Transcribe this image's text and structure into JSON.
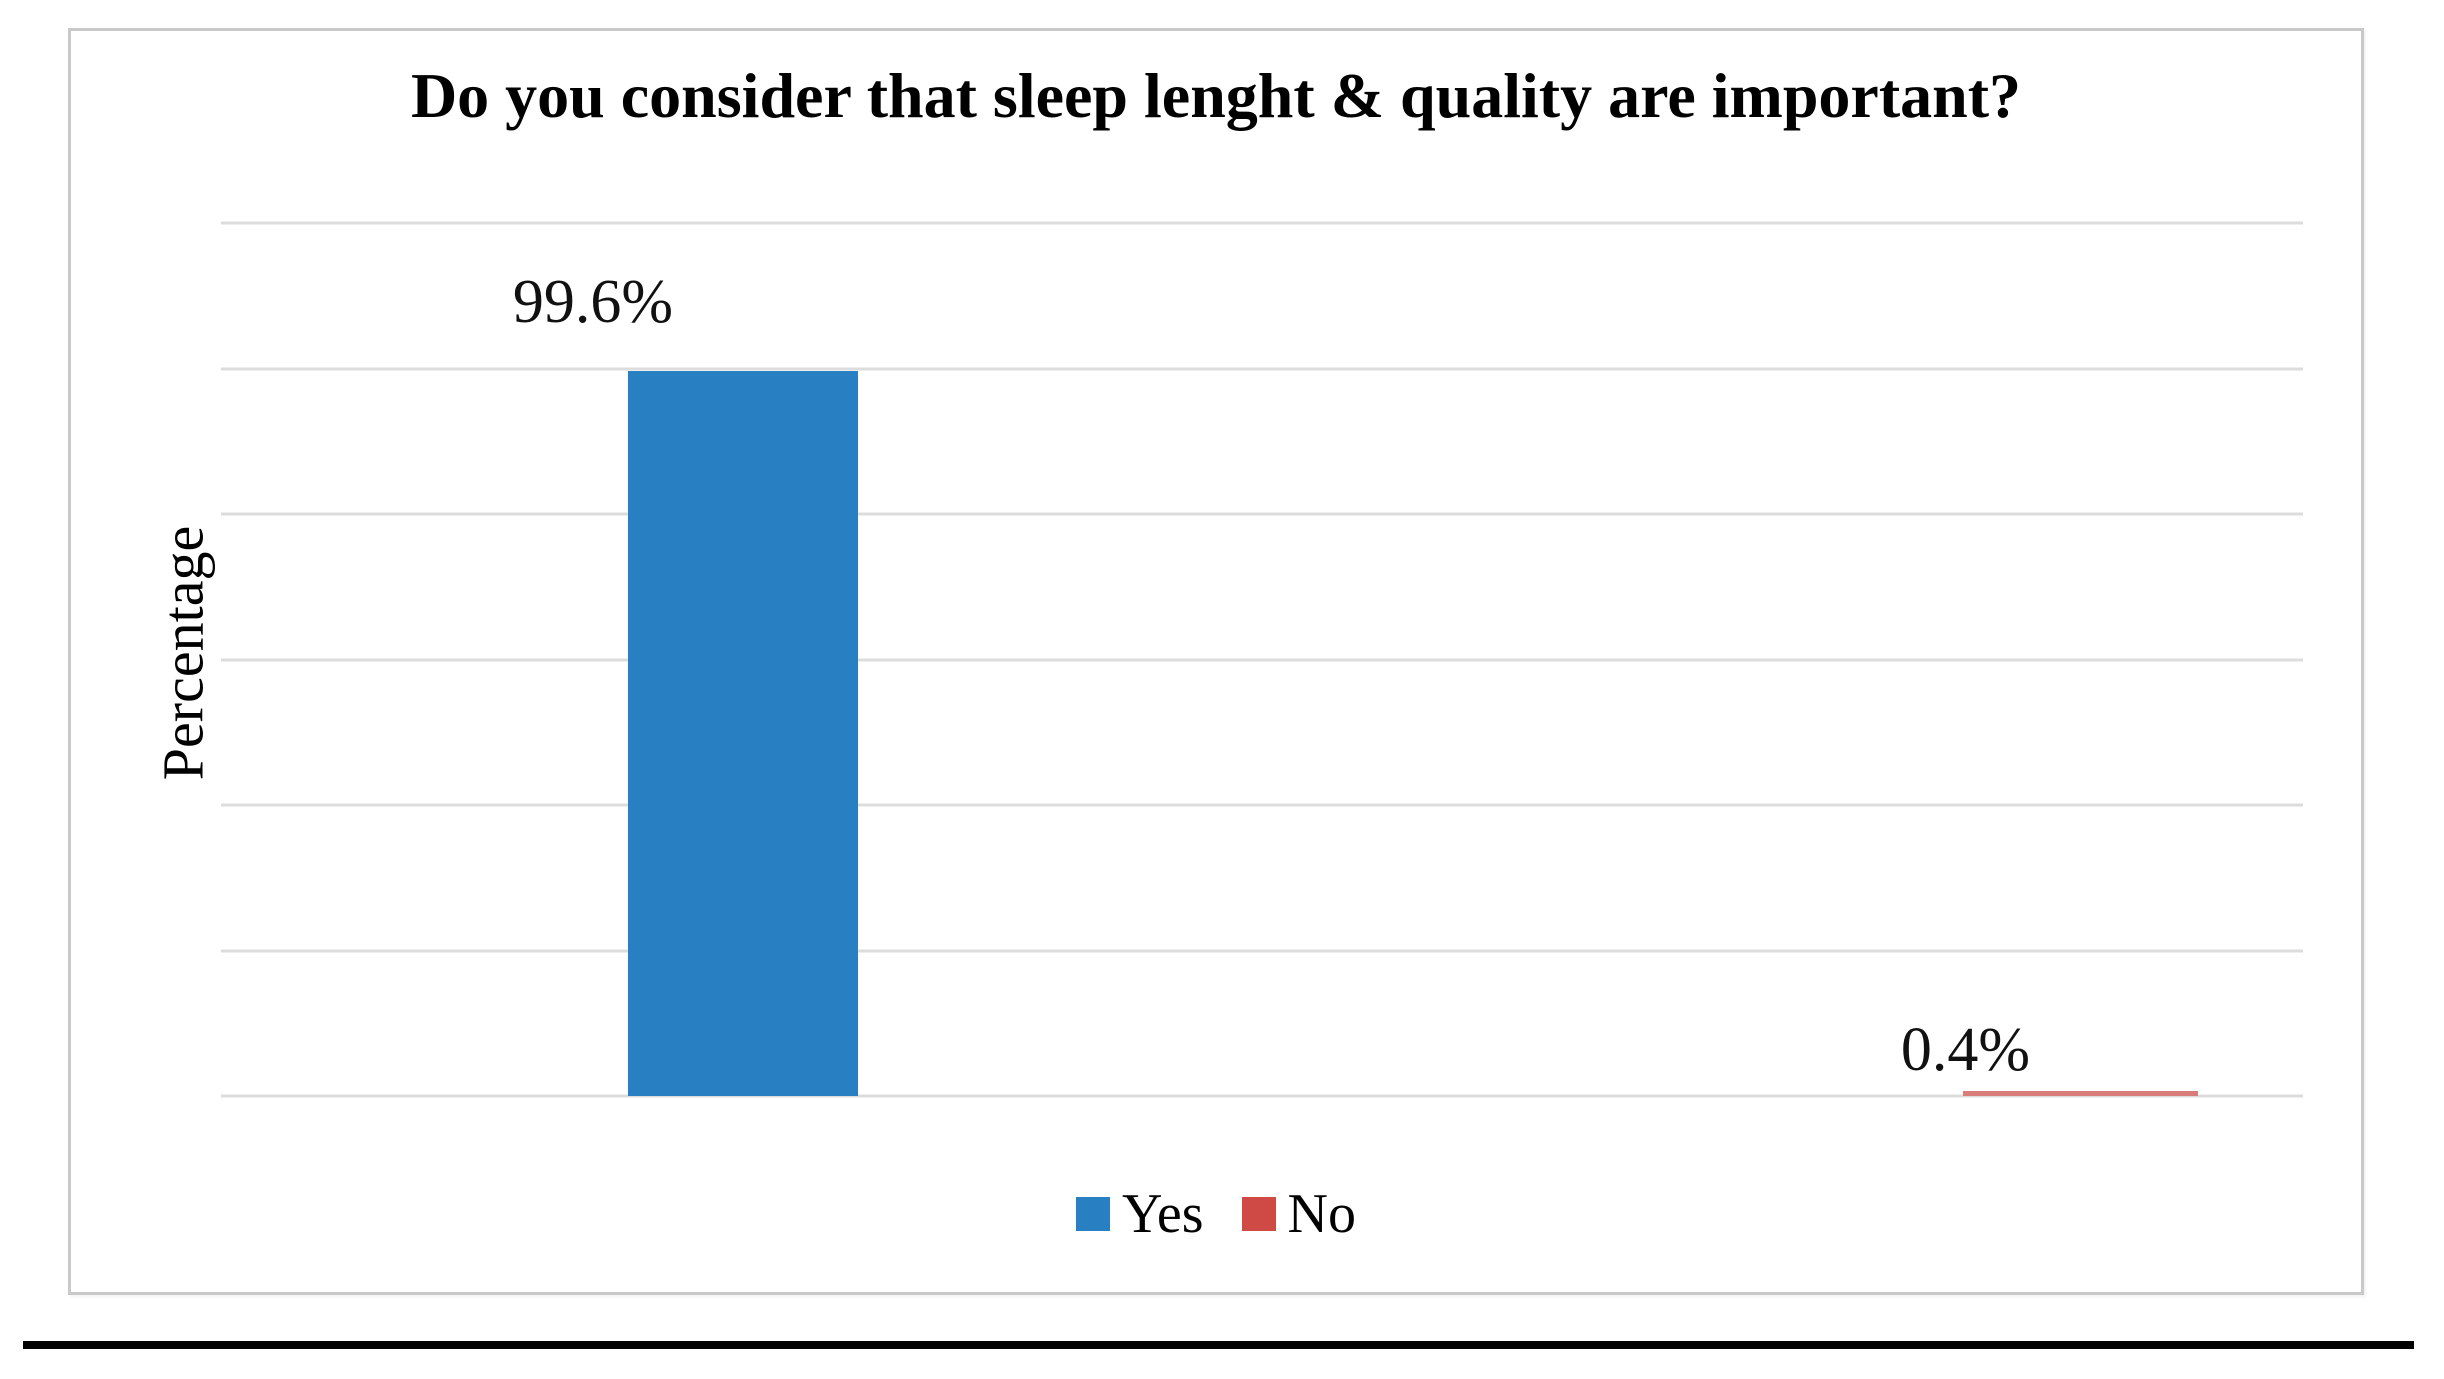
{
  "figure": {
    "title": "Do you consider that sleep lenght & quality are important?",
    "y_axis_label": "Percentage"
  },
  "chart_data": {
    "type": "bar",
    "title": "Do you consider that sleep lenght & quality are important?",
    "categories": [
      "Yes",
      "No"
    ],
    "values": [
      99.6,
      0.4
    ],
    "data_labels": [
      "99.6%",
      "0.4%"
    ],
    "xlabel": "",
    "ylabel": "Percentage",
    "ylim": [
      0,
      120
    ],
    "gridline_step": 20,
    "grid": true,
    "axis_tick_labels_visible": false,
    "legend_position": "bottom",
    "series_colors": {
      "Yes": "#2880C2",
      "No": "#D04A45"
    },
    "bar_render_colors": [
      "#2880C2",
      "#D97D7A"
    ]
  },
  "legend": {
    "items": [
      {
        "label": "Yes",
        "color": "#2880C2"
      },
      {
        "label": "No",
        "color": "#D04A45"
      }
    ]
  },
  "colors": {
    "gridline": "#DCDCDC",
    "chart_border": "#C9C9C9",
    "title_text": "#000000",
    "bottom_rule": "#000000"
  }
}
